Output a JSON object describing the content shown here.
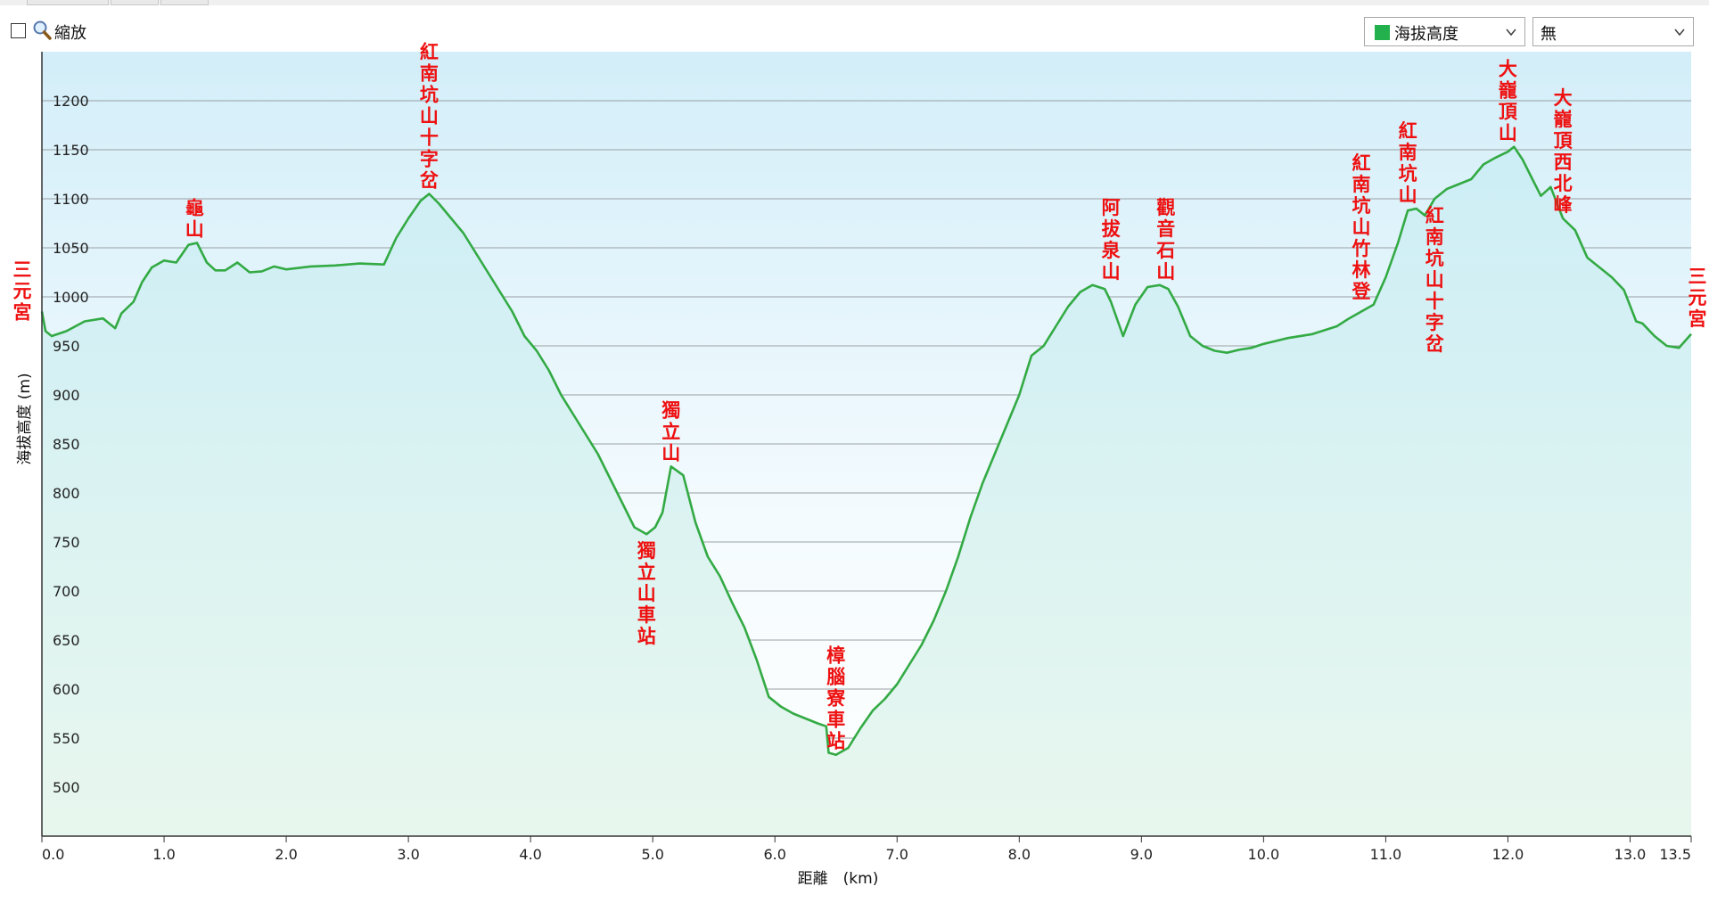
{
  "toolbar": {
    "zoom_label": "縮放",
    "zoom_checked": false,
    "series_select": {
      "value": "海拔高度",
      "color": "#22b14c"
    },
    "second_select": {
      "value": "無"
    }
  },
  "chart_data": {
    "type": "area",
    "xlabel": "距離　(km)",
    "ylabel": "海拔高度 (m)",
    "xlim": [
      0,
      13.5
    ],
    "ylim": [
      450,
      1250
    ],
    "x_ticks": [
      0.0,
      1.0,
      2.0,
      3.0,
      4.0,
      5.0,
      6.0,
      7.0,
      8.0,
      9.0,
      10.0,
      11.0,
      12.0,
      13.0,
      13.5
    ],
    "x_tick_labels": [
      "0.0",
      "1.0",
      "2.0",
      "3.0",
      "4.0",
      "5.0",
      "6.0",
      "7.0",
      "8.0",
      "9.0",
      "10.0",
      "11.0",
      "12.0",
      "13.0",
      "13.5"
    ],
    "y_ticks": [
      500,
      550,
      600,
      650,
      700,
      750,
      800,
      850,
      900,
      950,
      1000,
      1050,
      1100,
      1150,
      1200
    ],
    "grid": true,
    "line_color": "#33aa44",
    "fill_top_color": "#cfeef8",
    "fill_bottom_color": "#e8f7ee",
    "series": [
      {
        "x": [
          0.0,
          0.03,
          0.08,
          0.2,
          0.35,
          0.5,
          0.6,
          0.65,
          0.75,
          0.82,
          0.9,
          1.0,
          1.1,
          1.2,
          1.27,
          1.35,
          1.42,
          1.5,
          1.6,
          1.7,
          1.8,
          1.9,
          2.0,
          2.2,
          2.4,
          2.6,
          2.8,
          2.9,
          3.0,
          3.1,
          3.17,
          3.25,
          3.35,
          3.45,
          3.55,
          3.65,
          3.75,
          3.85,
          3.95,
          4.05,
          4.15,
          4.25,
          4.35,
          4.45,
          4.55,
          4.65,
          4.75,
          4.85,
          4.95,
          5.02,
          5.08,
          5.15,
          5.25,
          5.35,
          5.45,
          5.55,
          5.65,
          5.75,
          5.85,
          5.95,
          6.05,
          6.15,
          6.25,
          6.35,
          6.42,
          6.44,
          6.5,
          6.6,
          6.7,
          6.8,
          6.9,
          7.0,
          7.1,
          7.2,
          7.3,
          7.4,
          7.5,
          7.6,
          7.7,
          7.8,
          7.9,
          8.0,
          8.1,
          8.2,
          8.3,
          8.4,
          8.5,
          8.6,
          8.7,
          8.75,
          8.85,
          8.95,
          9.05,
          9.15,
          9.22,
          9.3,
          9.4,
          9.5,
          9.6,
          9.7,
          9.8,
          9.9,
          10.0,
          10.1,
          10.2,
          10.4,
          10.6,
          10.7,
          10.8,
          10.9,
          11.0,
          11.1,
          11.18,
          11.25,
          11.32,
          11.4,
          11.5,
          11.6,
          11.7,
          11.8,
          11.9,
          12.0,
          12.05,
          12.12,
          12.2,
          12.27,
          12.35,
          12.45,
          12.55,
          12.65,
          12.75,
          12.85,
          12.95,
          13.05,
          13.1,
          13.2,
          13.3,
          13.4,
          13.5
        ],
        "y": [
          985,
          965,
          960,
          965,
          975,
          978,
          968,
          983,
          995,
          1015,
          1030,
          1037,
          1035,
          1053,
          1055,
          1035,
          1027,
          1027,
          1035,
          1025,
          1026,
          1031,
          1028,
          1031,
          1032,
          1034,
          1033,
          1060,
          1080,
          1098,
          1105,
          1095,
          1080,
          1065,
          1045,
          1025,
          1005,
          985,
          960,
          945,
          925,
          900,
          880,
          860,
          840,
          815,
          790,
          765,
          758,
          765,
          780,
          827,
          818,
          770,
          735,
          715,
          688,
          663,
          630,
          592,
          582,
          575,
          570,
          565,
          562,
          535,
          533,
          540,
          560,
          578,
          590,
          605,
          625,
          645,
          670,
          700,
          735,
          775,
          810,
          840,
          870,
          900,
          940,
          950,
          970,
          990,
          1005,
          1012,
          1008,
          995,
          960,
          992,
          1010,
          1012,
          1008,
          990,
          960,
          950,
          945,
          943,
          946,
          948,
          952,
          955,
          958,
          962,
          970,
          978,
          985,
          992,
          1020,
          1055,
          1088,
          1090,
          1083,
          1100,
          1110,
          1115,
          1120,
          1135,
          1142,
          1148,
          1153,
          1140,
          1120,
          1103,
          1112,
          1080,
          1068,
          1040,
          1030,
          1020,
          1007,
          975,
          973,
          960,
          950,
          948,
          962
        ]
      }
    ],
    "annotations": [
      {
        "text": "三元宮",
        "x": 0.0,
        "y": 985,
        "place": "left-edge"
      },
      {
        "text": "龜山",
        "x": 1.25,
        "y": 1055,
        "place": "above"
      },
      {
        "text": "紅南坑山十字岔",
        "x": 3.17,
        "y": 1105,
        "place": "above"
      },
      {
        "text": "獨立山車站",
        "x": 4.95,
        "y": 758,
        "place": "below"
      },
      {
        "text": "獨立山",
        "x": 5.15,
        "y": 827,
        "place": "above"
      },
      {
        "text": "樟腦寮車站",
        "x": 6.5,
        "y": 533,
        "place": "above"
      },
      {
        "text": "阿拔泉山",
        "x": 8.75,
        "y": 1012,
        "place": "above"
      },
      {
        "text": "觀音石山",
        "x": 9.2,
        "y": 1012,
        "place": "above"
      },
      {
        "text": "紅南坑山竹林登",
        "x": 10.8,
        "y": 992,
        "place": "above"
      },
      {
        "text": "紅南坑山",
        "x": 11.18,
        "y": 1090,
        "place": "above"
      },
      {
        "text": "紅南坑山十字岔",
        "x": 11.4,
        "y": 1100,
        "place": "below"
      },
      {
        "text": "大巃頂山",
        "x": 12.0,
        "y": 1153,
        "place": "above"
      },
      {
        "text": "大巃頂西北峰",
        "x": 12.45,
        "y": 1080,
        "place": "above"
      },
      {
        "text": "三元宮",
        "x": 13.5,
        "y": 962,
        "place": "right-edge"
      }
    ]
  }
}
